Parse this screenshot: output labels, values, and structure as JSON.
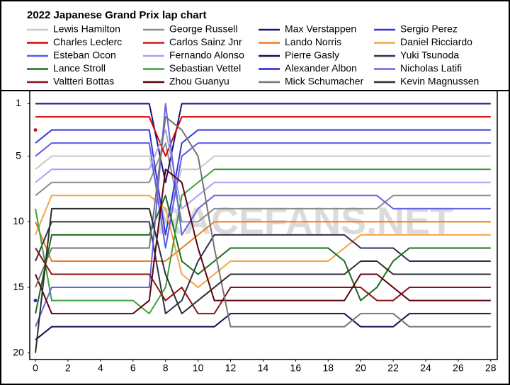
{
  "chart_data": {
    "type": "line",
    "title": "2022 Japanese Grand Prix lap chart",
    "watermark": "RACEFANS.NET",
    "x": [
      0,
      1,
      2,
      3,
      4,
      5,
      6,
      7,
      8,
      9,
      10,
      11,
      12,
      13,
      14,
      15,
      16,
      17,
      18,
      19,
      20,
      21,
      22,
      23,
      24,
      25,
      26,
      27,
      28
    ],
    "xlim": [
      -0.35,
      28.4
    ],
    "xticks": [
      0,
      2,
      4,
      6,
      8,
      10,
      12,
      14,
      16,
      18,
      20,
      22,
      24,
      26,
      28
    ],
    "ylim": [
      20.5,
      0
    ],
    "yticks": [
      1,
      5,
      10,
      15,
      20
    ],
    "series": [
      {
        "name": "Lewis Hamilton",
        "color": "#c8c8c8",
        "values": [
          6,
          5,
          5,
          5,
          5,
          5,
          5,
          5,
          10,
          6,
          6,
          5,
          5,
          5,
          5,
          5,
          5,
          5,
          5,
          5,
          5,
          5,
          5,
          5,
          5,
          5,
          5,
          5,
          5
        ]
      },
      {
        "name": "George Russell",
        "color": "#8c8c8c",
        "values": [
          8,
          7,
          7,
          7,
          7,
          7,
          7,
          7,
          4,
          10,
          10,
          9,
          9,
          9,
          9,
          9,
          9,
          9,
          9,
          9,
          9,
          9,
          8,
          8,
          8,
          8,
          8,
          8,
          8
        ]
      },
      {
        "name": "Max Verstappen",
        "color": "#15157a",
        "values": [
          1,
          1,
          1,
          1,
          1,
          1,
          1,
          1,
          7,
          1,
          1,
          1,
          1,
          1,
          1,
          1,
          1,
          1,
          1,
          1,
          1,
          1,
          1,
          1,
          1,
          1,
          1,
          1,
          1
        ]
      },
      {
        "name": "Sergio Perez",
        "color": "#3535d8",
        "values": [
          4,
          3,
          3,
          3,
          3,
          3,
          3,
          3,
          11,
          4,
          3,
          3,
          3,
          3,
          3,
          3,
          3,
          3,
          3,
          3,
          3,
          3,
          3,
          3,
          3,
          3,
          3,
          3,
          3
        ]
      },
      {
        "name": "Charles Leclerc",
        "color": "#e00000",
        "values": [
          2,
          2,
          2,
          2,
          2,
          2,
          2,
          2,
          5,
          2,
          2,
          2,
          2,
          2,
          2,
          2,
          2,
          2,
          2,
          2,
          2,
          2,
          2,
          2,
          2,
          2,
          2,
          2,
          2
        ]
      },
      {
        "name": "Carlos Sainz Jnr",
        "color": "#c81818",
        "values": [
          3,
          null,
          null,
          null,
          null,
          null,
          null,
          null,
          null,
          null,
          null,
          null,
          null,
          null,
          null,
          null,
          null,
          null,
          null,
          null,
          null,
          null,
          null,
          null,
          null,
          null,
          null,
          null,
          null
        ]
      },
      {
        "name": "Lando Norris",
        "color": "#f07a22",
        "values": [
          10,
          13,
          13,
          13,
          13,
          13,
          13,
          13,
          13,
          12,
          11,
          10,
          10,
          10,
          10,
          10,
          10,
          10,
          10,
          10,
          10,
          10,
          10,
          10,
          10,
          10,
          10,
          10,
          10
        ]
      },
      {
        "name": "Daniel Ricciardo",
        "color": "#f4a444",
        "values": [
          11,
          8,
          8,
          8,
          8,
          8,
          8,
          8,
          9,
          14,
          15,
          14,
          13,
          13,
          13,
          13,
          13,
          13,
          13,
          12,
          11,
          11,
          11,
          11,
          11,
          11,
          11,
          11,
          11
        ]
      },
      {
        "name": "Esteban Ocon",
        "color": "#5a5ae8",
        "values": [
          5,
          4,
          4,
          4,
          4,
          4,
          4,
          4,
          12,
          5,
          4,
          4,
          4,
          4,
          4,
          4,
          4,
          4,
          4,
          4,
          4,
          4,
          4,
          4,
          4,
          4,
          4,
          4,
          4
        ]
      },
      {
        "name": "Fernando Alonso",
        "color": "#a4a4f0",
        "values": [
          7,
          6,
          6,
          6,
          6,
          6,
          6,
          6,
          3,
          9,
          8,
          7,
          7,
          7,
          7,
          7,
          7,
          7,
          7,
          7,
          7,
          7,
          7,
          7,
          7,
          7,
          7,
          7,
          7
        ]
      },
      {
        "name": "Pierre Gasly",
        "color": "#10104e",
        "values": [
          19,
          18,
          18,
          18,
          18,
          18,
          18,
          18,
          18,
          18,
          18,
          18,
          17,
          17,
          17,
          17,
          17,
          17,
          17,
          17,
          18,
          18,
          18,
          17,
          17,
          17,
          17,
          17,
          17
        ]
      },
      {
        "name": "Yuki Tsunoda",
        "color": "#30304e",
        "values": [
          13,
          10,
          10,
          10,
          10,
          10,
          10,
          10,
          17,
          16,
          13,
          11,
          11,
          11,
          11,
          11,
          11,
          11,
          11,
          11,
          12,
          12,
          12,
          13,
          13,
          13,
          13,
          13,
          13
        ]
      },
      {
        "name": "Lance Stroll",
        "color": "#1a6e1a",
        "values": [
          17,
          11,
          11,
          11,
          11,
          11,
          11,
          11,
          8,
          13,
          14,
          13,
          12,
          12,
          12,
          12,
          12,
          12,
          12,
          13,
          16,
          15,
          13,
          12,
          12,
          12,
          12,
          12,
          12
        ]
      },
      {
        "name": "Sebastian Vettel",
        "color": "#3ca03c",
        "values": [
          9,
          16,
          16,
          16,
          16,
          16,
          16,
          17,
          15,
          8,
          7,
          6,
          6,
          6,
          6,
          6,
          6,
          6,
          6,
          6,
          6,
          6,
          6,
          6,
          6,
          6,
          6,
          6,
          6
        ]
      },
      {
        "name": "Alexander Albon",
        "color": "#2222cc",
        "values": [
          16,
          null,
          null,
          null,
          null,
          null,
          null,
          null,
          null,
          null,
          null,
          null,
          null,
          null,
          null,
          null,
          null,
          null,
          null,
          null,
          null,
          null,
          null,
          null,
          null,
          null,
          null,
          null,
          null
        ]
      },
      {
        "name": "Nicholas Latifi",
        "color": "#6464e4",
        "values": [
          18,
          15,
          15,
          15,
          15,
          15,
          15,
          15,
          1,
          11,
          9,
          8,
          8,
          8,
          8,
          8,
          8,
          8,
          8,
          8,
          8,
          8,
          9,
          9,
          9,
          9,
          9,
          9,
          9
        ]
      },
      {
        "name": "Valtteri Bottas",
        "color": "#8b1212",
        "values": [
          12,
          14,
          14,
          14,
          14,
          14,
          14,
          14,
          16,
          15,
          17,
          17,
          15,
          15,
          15,
          15,
          15,
          15,
          15,
          15,
          15,
          16,
          16,
          15,
          15,
          15,
          15,
          15,
          15
        ]
      },
      {
        "name": "Zhou Guanyu",
        "color": "#5e0010",
        "values": [
          14,
          17,
          17,
          17,
          17,
          17,
          17,
          16,
          6,
          7,
          12,
          16,
          16,
          16,
          16,
          16,
          16,
          16,
          16,
          16,
          14,
          14,
          15,
          16,
          16,
          16,
          16,
          16,
          16
        ]
      },
      {
        "name": "Mick Schumacher",
        "color": "#747474",
        "values": [
          15,
          12,
          12,
          12,
          12,
          12,
          12,
          12,
          2,
          3,
          5,
          12,
          18,
          18,
          18,
          18,
          18,
          18,
          18,
          18,
          17,
          17,
          17,
          18,
          18,
          18,
          18,
          18,
          18
        ]
      },
      {
        "name": "Kevin Magnussen",
        "color": "#2e2e2e",
        "values": [
          20,
          9,
          9,
          9,
          9,
          9,
          9,
          9,
          14,
          17,
          16,
          15,
          14,
          14,
          14,
          14,
          14,
          14,
          14,
          14,
          13,
          13,
          14,
          14,
          14,
          14,
          14,
          14,
          14
        ]
      }
    ]
  }
}
